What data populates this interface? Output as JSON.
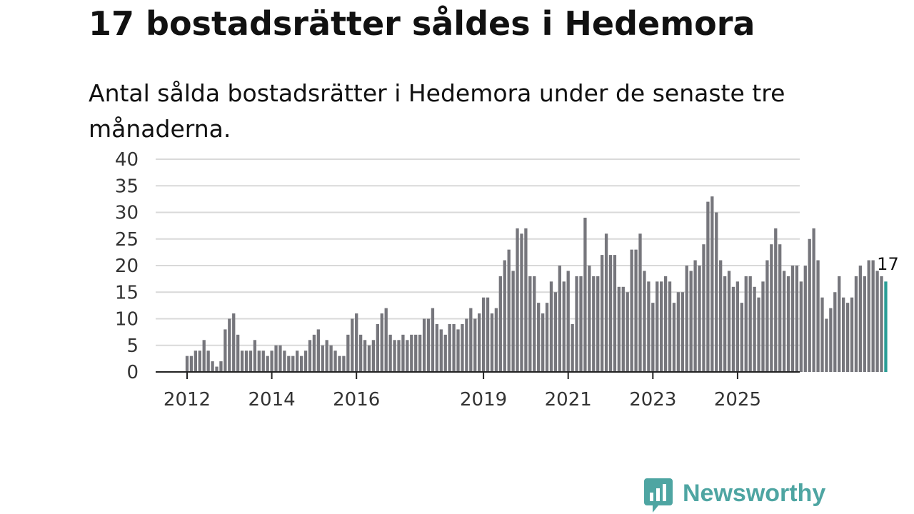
{
  "title": "17 bostadsrätter såldes i Hedemora",
  "subtitle": "Antal sålda bostadsrätter i Hedemora under de senaste tre månaderna.",
  "brand": {
    "name": "Newsworthy",
    "color": "#4ea5a2"
  },
  "colors": {
    "bar": "#76767c",
    "highlight": "#2a9d96",
    "grid": "#d9d9d9",
    "axis": "#222222",
    "text": "#333333"
  },
  "chart_data": {
    "type": "bar",
    "title": "17 bostadsrätter såldes i Hedemora",
    "xlabel": "",
    "ylabel": "",
    "ylim": [
      0,
      40
    ],
    "y_ticks": [
      0,
      5,
      10,
      15,
      20,
      25,
      30,
      35,
      40
    ],
    "x_range": [
      "2011-07",
      "2026-04"
    ],
    "x_ticks": [
      {
        "label": "2012",
        "index": 0
      },
      {
        "label": "2014",
        "index": 20
      },
      {
        "label": "2016",
        "index": 40
      },
      {
        "label": "2019",
        "index": 70
      },
      {
        "label": "2021",
        "index": 90
      },
      {
        "label": "2023",
        "index": 110
      },
      {
        "label": "2025",
        "index": 130
      }
    ],
    "start_index_label": "2012-01",
    "values": [
      3,
      3,
      4,
      4,
      6,
      4,
      2,
      1,
      2,
      8,
      10,
      11,
      7,
      4,
      4,
      4,
      6,
      4,
      4,
      3,
      4,
      5,
      5,
      4,
      3,
      3,
      4,
      3,
      4,
      6,
      7,
      8,
      5,
      6,
      5,
      4,
      3,
      3,
      7,
      10,
      11,
      7,
      6,
      5,
      6,
      9,
      11,
      12,
      7,
      6,
      6,
      7,
      6,
      7,
      7,
      7,
      10,
      10,
      12,
      9,
      8,
      7,
      9,
      9,
      8,
      9,
      10,
      12,
      10,
      11,
      14,
      14,
      11,
      12,
      18,
      21,
      23,
      19,
      27,
      26,
      27,
      18,
      18,
      13,
      11,
      13,
      17,
      15,
      20,
      17,
      19,
      9,
      18,
      18,
      29,
      20,
      18,
      18,
      22,
      26,
      22,
      22,
      16,
      16,
      15,
      23,
      23,
      26,
      19,
      17,
      13,
      17,
      17,
      18,
      17,
      13,
      15,
      15,
      20,
      19,
      21,
      20,
      24,
      32,
      33,
      30,
      21,
      18,
      19,
      16,
      17,
      13,
      18,
      18,
      16,
      14,
      17,
      21,
      24,
      27,
      24,
      19,
      18,
      20,
      20,
      17,
      20,
      25,
      27,
      21,
      14,
      10,
      12,
      15,
      18,
      14,
      13,
      14,
      18,
      20,
      18,
      21,
      21,
      19,
      18,
      17
    ],
    "highlight_last": true,
    "annotation": {
      "label": "17",
      "value": 17
    }
  }
}
